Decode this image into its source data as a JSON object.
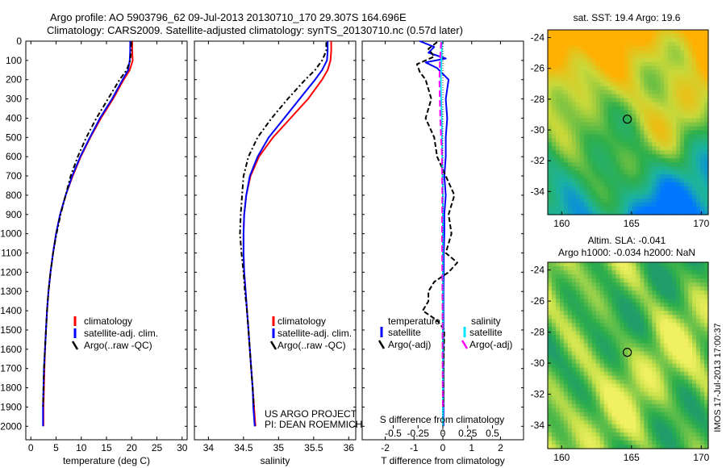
{
  "header": {
    "line1": "Argo profile: AO 5903796_62 09-Jul-2013 20130710_170 29.307S 164.696E",
    "line2": "Climatology: CARS2009. Satellite-adjusted climatology: synTS_20130710.nc (0.57d later)"
  },
  "credits": {
    "project": "US ARGO PROJECT",
    "pi": "PI: DEAN ROEMMICH",
    "imos": "IMOS 17-Jul-2013 17:00:37"
  },
  "colors": {
    "climatology": "#ff0000",
    "satellite": "#0000ff",
    "argo": "#000000",
    "salinity_satellite": "#00e5ff",
    "salinity_argo": "#ff00ff"
  },
  "chart_data": [
    {
      "id": "temperature",
      "type": "line",
      "xlabel": "temperature (deg C)",
      "ylabel": "",
      "xlim": [
        -1,
        31
      ],
      "ylim": [
        2070,
        0
      ],
      "xticks": [
        0,
        5,
        10,
        15,
        20,
        25,
        30
      ],
      "yticks": [
        0,
        100,
        200,
        300,
        400,
        500,
        600,
        700,
        800,
        900,
        1000,
        1100,
        1200,
        1300,
        1400,
        1500,
        1600,
        1700,
        1800,
        1900,
        2000
      ],
      "legend": [
        "climatology",
        "satellite-adj. clim.",
        "Argo(..raw -QC)"
      ],
      "series": [
        {
          "name": "climatology",
          "color": "#ff0000",
          "dash": "",
          "x": [
            20.1,
            20.1,
            20.2,
            19.6,
            18.4,
            16.3,
            13.9,
            11.8,
            9.9,
            8.3,
            6.9,
            5.8,
            5.0,
            4.4,
            3.9,
            3.5,
            3.2,
            3.0,
            2.8,
            2.7,
            2.6,
            2.5,
            2.5
          ],
          "y": [
            0,
            50,
            100,
            150,
            200,
            300,
            400,
            500,
            600,
            700,
            800,
            900,
            1000,
            1100,
            1200,
            1300,
            1400,
            1500,
            1600,
            1700,
            1800,
            1900,
            2000
          ]
        },
        {
          "name": "satellite-adj. clim.",
          "color": "#0000ff",
          "dash": "",
          "x": [
            19.7,
            19.7,
            19.6,
            19.3,
            18.2,
            16.1,
            13.7,
            11.7,
            9.8,
            8.2,
            6.9,
            5.8,
            5.0,
            4.4,
            3.9,
            3.5,
            3.2,
            3.0,
            2.8,
            2.6,
            2.5,
            2.4,
            2.4
          ],
          "y": [
            0,
            50,
            100,
            150,
            200,
            300,
            400,
            500,
            600,
            700,
            800,
            900,
            1000,
            1100,
            1200,
            1300,
            1400,
            1500,
            1600,
            1700,
            1800,
            1900,
            2000
          ]
        },
        {
          "name": "Argo(..raw -QC)",
          "color": "#000000",
          "dash": "6,3,2,3",
          "x": [
            19.9,
            19.9,
            19.7,
            19.0,
            17.6,
            15.3,
            13.0,
            11.0,
            9.3,
            7.9,
            6.9,
            5.9,
            5.1,
            4.4,
            3.9,
            3.5,
            3.2,
            3.0,
            2.8,
            2.6,
            2.5,
            2.4
          ],
          "y": [
            5,
            50,
            100,
            150,
            200,
            300,
            400,
            500,
            600,
            700,
            800,
            900,
            1000,
            1100,
            1200,
            1300,
            1400,
            1500,
            1600,
            1700,
            1800,
            1900
          ]
        }
      ]
    },
    {
      "id": "salinity",
      "type": "line",
      "xlabel": "salinity",
      "ylabel": "",
      "xlim": [
        33.8,
        36.1
      ],
      "ylim": [
        2070,
        0
      ],
      "xticks": [
        34,
        34.5,
        35,
        35.5,
        36
      ],
      "legend": [
        "climatology",
        "satellite-adj. clim.",
        "Argo(..raw -QC)"
      ],
      "series": [
        {
          "name": "climatology",
          "color": "#ff0000",
          "dash": "",
          "x": [
            35.75,
            35.75,
            35.74,
            35.7,
            35.62,
            35.42,
            35.17,
            34.92,
            34.72,
            34.6,
            34.54,
            34.51,
            34.5,
            34.5,
            34.51,
            34.53,
            34.55,
            34.57,
            34.59,
            34.61,
            34.63,
            34.65,
            34.67
          ],
          "y": [
            0,
            50,
            100,
            150,
            200,
            300,
            400,
            500,
            600,
            700,
            800,
            900,
            1000,
            1100,
            1200,
            1300,
            1400,
            1500,
            1600,
            1700,
            1800,
            1900,
            2000
          ]
        },
        {
          "name": "satellite-adj. clim.",
          "color": "#0000ff",
          "dash": "",
          "x": [
            35.7,
            35.7,
            35.69,
            35.62,
            35.52,
            35.3,
            35.08,
            34.86,
            34.7,
            34.59,
            34.54,
            34.51,
            34.5,
            34.5,
            34.51,
            34.53,
            34.55,
            34.57,
            34.59,
            34.61,
            34.63,
            34.64,
            34.66
          ],
          "y": [
            0,
            50,
            100,
            150,
            200,
            300,
            400,
            500,
            600,
            700,
            800,
            900,
            1000,
            1100,
            1200,
            1300,
            1400,
            1500,
            1600,
            1700,
            1800,
            1900,
            2000
          ]
        },
        {
          "name": "Argo(..raw -QC)",
          "color": "#000000",
          "dash": "6,3,2,3",
          "x": [
            35.68,
            35.68,
            35.62,
            35.52,
            35.38,
            35.13,
            34.9,
            34.7,
            34.57,
            34.5,
            34.48,
            34.46,
            34.45,
            34.47,
            34.5,
            34.52,
            34.55,
            34.57,
            34.59,
            34.61,
            34.63,
            34.65
          ],
          "y": [
            5,
            50,
            100,
            150,
            200,
            300,
            400,
            500,
            600,
            700,
            800,
            900,
            1000,
            1100,
            1200,
            1300,
            1400,
            1500,
            1600,
            1700,
            1800,
            1900
          ]
        }
      ]
    },
    {
      "id": "difference",
      "type": "line",
      "xlabel": "T difference from climatology",
      "top_label": "S difference from climatology",
      "xlim": [
        -2.8,
        2.8
      ],
      "ylim": [
        2070,
        0
      ],
      "xticks": [
        -2,
        -1,
        0,
        1,
        2
      ],
      "xtick_labels": [
        "-2",
        "-1",
        "0",
        "1",
        "2"
      ],
      "sticks": [
        -0.5,
        -0.25,
        0,
        0.25,
        0.5
      ],
      "stick_labels": [
        "-0.5",
        "-0.25",
        "0",
        "0.25",
        "0.5"
      ],
      "legend_groups": [
        "temperature",
        "salinity"
      ],
      "legend": [
        "satellite",
        "Argo(-adj)",
        "satellite",
        "Argo(-adj)"
      ],
      "series": [
        {
          "name": "temperature satellite",
          "color": "#0000ff",
          "dash": "",
          "x": [
            -0.8,
            -0.3,
            -0.5,
            0.1,
            -0.6,
            -0.2,
            0.2,
            0.1,
            0.15,
            0.1,
            0.1,
            0.05,
            0.1,
            0.05,
            0.05,
            0.03,
            0.03,
            0.02,
            0.02,
            0.02,
            0.02,
            0.02,
            0.02
          ],
          "y": [
            0,
            30,
            60,
            90,
            110,
            140,
            200,
            300,
            400,
            500,
            600,
            700,
            800,
            900,
            1000,
            1100,
            1200,
            1300,
            1400,
            1500,
            1600,
            1800,
            2000
          ]
        },
        {
          "name": "temperature Argo(-adj)",
          "color": "#000000",
          "dash": "6,3",
          "x": [
            -0.2,
            -0.5,
            -0.3,
            -0.9,
            -0.8,
            -0.6,
            -0.4,
            -0.6,
            -0.3,
            -0.2,
            0.1,
            0.4,
            0.2,
            0.3,
            0.1,
            0.5,
            0.2,
            -0.3,
            -0.5,
            -0.5,
            -0.7,
            -0.2,
            0.05,
            0.02,
            0.02
          ],
          "y": [
            5,
            40,
            80,
            120,
            160,
            200,
            300,
            400,
            500,
            600,
            700,
            800,
            900,
            1000,
            1100,
            1150,
            1200,
            1250,
            1300,
            1350,
            1400,
            1450,
            1500,
            1700,
            1900
          ]
        },
        {
          "name": "salinity satellite",
          "color": "#00e5ff",
          "dash": "",
          "x": [
            -0.04,
            -0.04,
            -0.05,
            -0.06,
            -0.07,
            -0.06,
            -0.04,
            -0.03,
            -0.02,
            -0.01,
            0,
            0,
            0,
            0,
            0,
            0,
            0,
            0,
            0,
            0,
            0
          ],
          "y": [
            0,
            50,
            100,
            150,
            200,
            300,
            400,
            500,
            600,
            700,
            800,
            900,
            1000,
            1100,
            1200,
            1300,
            1400,
            1500,
            1600,
            1800,
            2000
          ]
        },
        {
          "name": "salinity Argo(-adj)",
          "color": "#ff00ff",
          "dash": "8,4",
          "x": [
            -0.06,
            -0.1,
            -0.12,
            -0.09,
            -0.03,
            -0.02,
            -0.03,
            -0.02,
            -0.01,
            -0.01,
            0
          ],
          "y": [
            5,
            100,
            200,
            400,
            600,
            800,
            1000,
            1200,
            1400,
            1600,
            1900
          ]
        }
      ]
    },
    {
      "id": "sst_map",
      "type": "heatmap",
      "title": "sat. SST: 19.4 Argo: 19.6",
      "xlim": [
        159,
        170.5
      ],
      "ylim": [
        -35.5,
        -23.5
      ],
      "xticks": [
        160,
        165,
        170
      ],
      "yticks": [
        -24,
        -26,
        -28,
        -30,
        -32,
        -34
      ],
      "marker": {
        "lon": 164.7,
        "lat": -29.3
      },
      "colorscale": [
        "#ffb000",
        "#c8d83a",
        "#2faf4a",
        "#1bb3a0",
        "#0077ff"
      ]
    },
    {
      "id": "sla_map",
      "type": "heatmap",
      "title": "Altim. SLA: -0.041",
      "subtitle": "Argo h1000: -0.034 h2000: NaN",
      "xlim": [
        159,
        170.5
      ],
      "ylim": [
        -35.5,
        -23.5
      ],
      "xticks": [
        160,
        165,
        170
      ],
      "yticks": [
        -24,
        -26,
        -28,
        -30,
        -32,
        -34
      ],
      "marker": {
        "lon": 164.7,
        "lat": -29.3
      },
      "colorscale": [
        "#1f9d6a",
        "#2faf4a",
        "#6cc24a",
        "#c6e04a",
        "#f0f060"
      ]
    }
  ]
}
